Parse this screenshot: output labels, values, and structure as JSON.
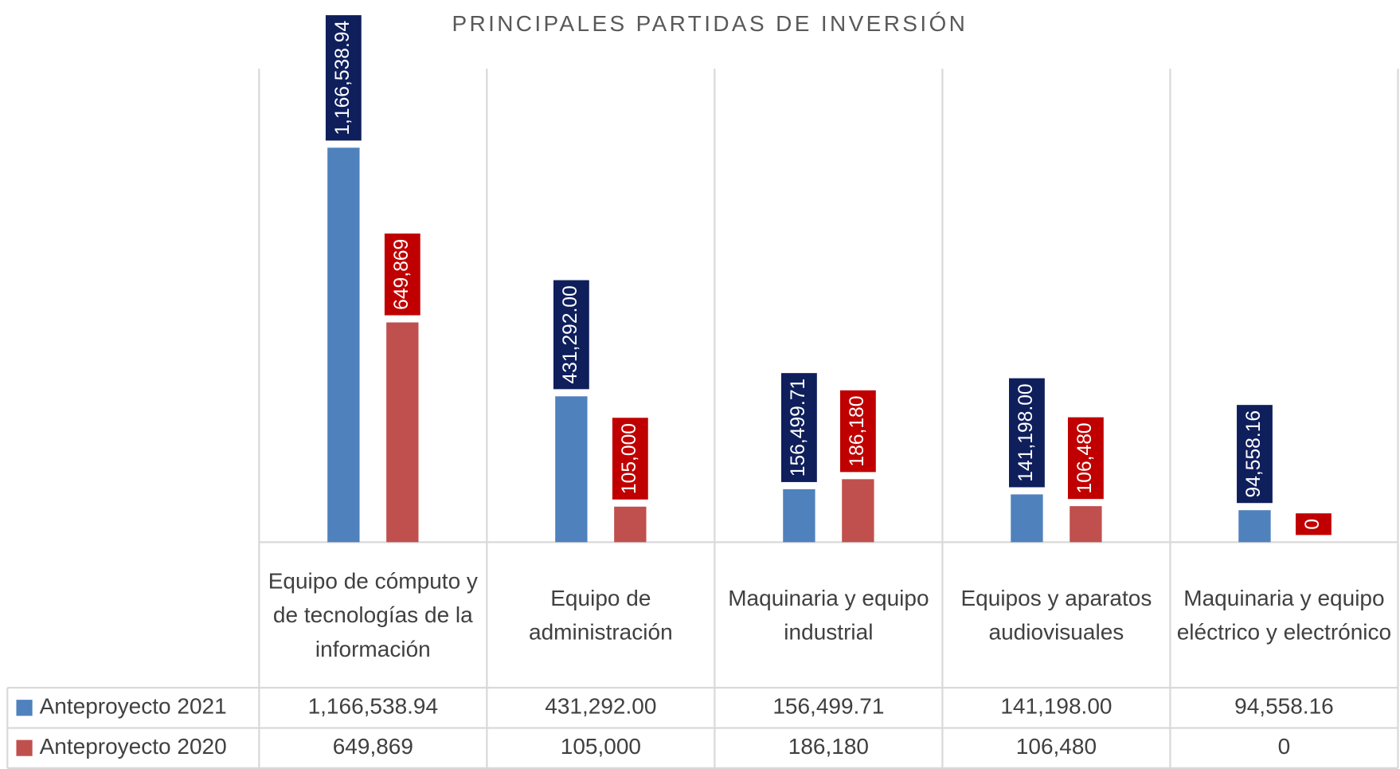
{
  "chart_data": {
    "type": "bar",
    "title": "PRINCIPALES PARTIDAS DE INVERSIÓN",
    "categories": [
      "Equipo de cómputo y de tecnologías de la información",
      "Equipo de administración",
      "Maquinaria y equipo industrial",
      "Equipos y aparatos audiovisuales",
      "Maquinaria y equipo eléctrico y electrónico"
    ],
    "series": [
      {
        "name": "Anteproyecto 2021",
        "color": "#4f81bd",
        "label_color": "#0f1f5c",
        "values": [
          1166538.94,
          431292.0,
          156499.71,
          141198.0,
          94558.16
        ],
        "value_labels": [
          "1,166,538.94",
          "431,292.00",
          "156,499.71",
          "141,198.00",
          "94,558.16"
        ]
      },
      {
        "name": "Anteproyecto 2020",
        "color": "#c0504d",
        "label_color": "#c00000",
        "values": [
          649869,
          105000,
          186180,
          106480,
          0
        ],
        "value_labels": [
          "649,869",
          "105,000",
          "186,180",
          "106,480",
          "0"
        ]
      }
    ],
    "ylim": [
      0,
      1400000
    ],
    "data_table": true
  }
}
